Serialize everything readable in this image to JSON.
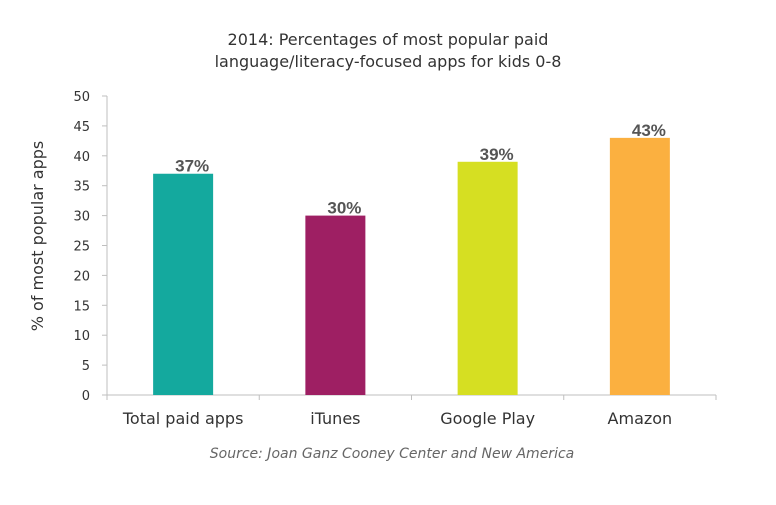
{
  "chart_data": {
    "type": "bar",
    "title_lines": [
      "2014: Percentages of most popular paid",
      "language/literacy-focused  apps for kids 0-8"
    ],
    "ylabel": "% of most popular apps",
    "xlabel": "",
    "categories": [
      "Total paid apps",
      "iTunes",
      "Google Play",
      "Amazon"
    ],
    "values": [
      37,
      30,
      39,
      43
    ],
    "data_labels": [
      "37%",
      "30%",
      "39%",
      "43%"
    ],
    "colors": [
      "#14a99e",
      "#9e1f63",
      "#d6df22",
      "#fbb040"
    ],
    "ylim": [
      0,
      50
    ],
    "yticks": [
      0,
      5,
      10,
      15,
      20,
      25,
      30,
      35,
      40,
      45,
      50
    ],
    "grid": false,
    "source": "Source: Joan Ganz Cooney Center and New America"
  }
}
